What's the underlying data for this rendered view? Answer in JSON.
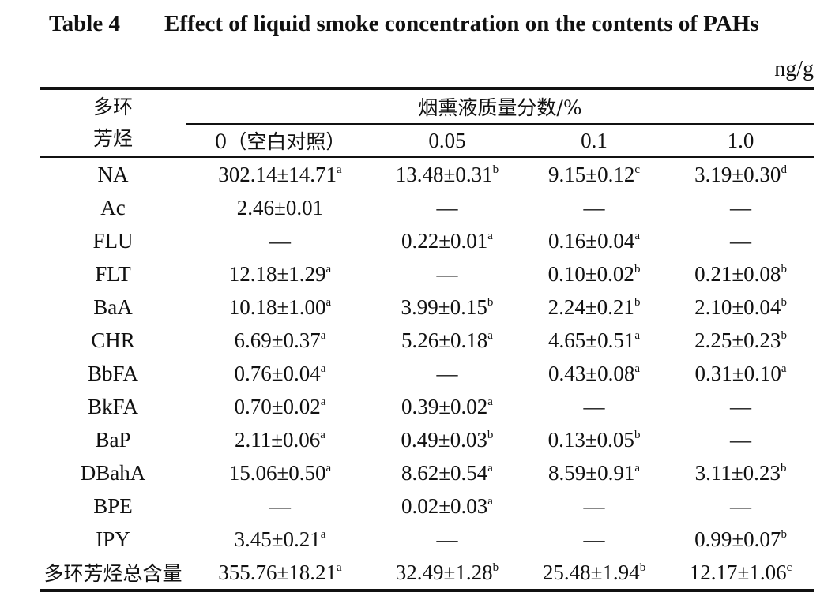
{
  "table": {
    "title_label": "Table 4",
    "title_text": "Effect of liquid smoke concentration on the contents of PAHs",
    "unit": "ng/g",
    "row_header_line1": "多环",
    "row_header_line2": "芳烃",
    "group_header": "烟熏液质量分数/%",
    "columns": [
      "0（空白对照）",
      "0.05",
      "0.1",
      "1.0"
    ],
    "rows": [
      {
        "name": "NA",
        "cells": [
          {
            "v": "302.14±14.71",
            "s": "a"
          },
          {
            "v": "13.48±0.31",
            "s": "b"
          },
          {
            "v": "9.15±0.12",
            "s": "c"
          },
          {
            "v": "3.19±0.30",
            "s": "d"
          }
        ]
      },
      {
        "name": "Ac",
        "cells": [
          {
            "v": "2.46±0.01",
            "s": ""
          },
          {
            "v": "—",
            "s": ""
          },
          {
            "v": "—",
            "s": ""
          },
          {
            "v": "—",
            "s": ""
          }
        ]
      },
      {
        "name": "FLU",
        "cells": [
          {
            "v": "—",
            "s": ""
          },
          {
            "v": "0.22±0.01",
            "s": "a"
          },
          {
            "v": "0.16±0.04",
            "s": "a"
          },
          {
            "v": "—",
            "s": ""
          }
        ]
      },
      {
        "name": "FLT",
        "cells": [
          {
            "v": "12.18±1.29",
            "s": "a"
          },
          {
            "v": "—",
            "s": ""
          },
          {
            "v": "0.10±0.02",
            "s": "b"
          },
          {
            "v": "0.21±0.08",
            "s": "b"
          }
        ]
      },
      {
        "name": "BaA",
        "cells": [
          {
            "v": "10.18±1.00",
            "s": "a"
          },
          {
            "v": "3.99±0.15",
            "s": "b"
          },
          {
            "v": "2.24±0.21",
            "s": "b"
          },
          {
            "v": "2.10±0.04",
            "s": "b"
          }
        ]
      },
      {
        "name": "CHR",
        "cells": [
          {
            "v": "6.69±0.37",
            "s": "a"
          },
          {
            "v": "5.26±0.18",
            "s": "a"
          },
          {
            "v": "4.65±0.51",
            "s": "a"
          },
          {
            "v": "2.25±0.23",
            "s": "b"
          }
        ]
      },
      {
        "name": "BbFA",
        "cells": [
          {
            "v": "0.76±0.04",
            "s": "a"
          },
          {
            "v": "—",
            "s": ""
          },
          {
            "v": "0.43±0.08",
            "s": "a"
          },
          {
            "v": "0.31±0.10",
            "s": "a"
          }
        ]
      },
      {
        "name": "BkFA",
        "cells": [
          {
            "v": "0.70±0.02",
            "s": "a"
          },
          {
            "v": "0.39±0.02",
            "s": "a"
          },
          {
            "v": "—",
            "s": ""
          },
          {
            "v": "—",
            "s": ""
          }
        ]
      },
      {
        "name": "BaP",
        "cells": [
          {
            "v": "2.11±0.06",
            "s": "a"
          },
          {
            "v": "0.49±0.03",
            "s": "b"
          },
          {
            "v": "0.13±0.05",
            "s": "b"
          },
          {
            "v": "—",
            "s": ""
          }
        ]
      },
      {
        "name": "DBahA",
        "cells": [
          {
            "v": "15.06±0.50",
            "s": "a"
          },
          {
            "v": "8.62±0.54",
            "s": "a"
          },
          {
            "v": "8.59±0.91",
            "s": "a"
          },
          {
            "v": "3.11±0.23",
            "s": "b"
          }
        ]
      },
      {
        "name": "BPE",
        "cells": [
          {
            "v": "—",
            "s": ""
          },
          {
            "v": "0.02±0.03",
            "s": "a"
          },
          {
            "v": "—",
            "s": ""
          },
          {
            "v": "—",
            "s": ""
          }
        ]
      },
      {
        "name": "IPY",
        "cells": [
          {
            "v": "3.45±0.21",
            "s": "a"
          },
          {
            "v": "—",
            "s": ""
          },
          {
            "v": "—",
            "s": ""
          },
          {
            "v": "0.99±0.07",
            "s": "b"
          }
        ]
      },
      {
        "name": "多环芳烃总含量",
        "cells": [
          {
            "v": "355.76±18.21",
            "s": "a"
          },
          {
            "v": "32.49±1.28",
            "s": "b"
          },
          {
            "v": "25.48±1.94",
            "s": "b"
          },
          {
            "v": "12.17±1.06",
            "s": "c"
          }
        ]
      }
    ]
  }
}
